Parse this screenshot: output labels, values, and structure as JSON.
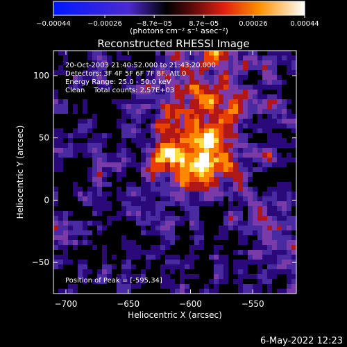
{
  "colorbar": {
    "tick_labels": [
      "−0.00044",
      "−0.00026",
      "−8.7e−05",
      "8.7e−05",
      "0.00026",
      "0.00044"
    ],
    "tick_values": [
      -0.00044,
      -0.00026,
      -8.7e-05,
      8.7e-05,
      0.00026,
      0.00044
    ],
    "range": [
      -0.00044,
      0.00044
    ],
    "units_label": "(photons cm⁻² s⁻¹ asec⁻²)"
  },
  "chart_data": {
    "type": "heatmap",
    "title": "Reconstructed RHESSI Image",
    "xlabel": "Heliocentric X (arcsec)",
    "ylabel": "Heliocentric Y (arcsec)",
    "xlim": [
      -710,
      -515
    ],
    "ylim": [
      -75,
      120
    ],
    "x_ticks": [
      -700,
      -650,
      -600,
      -550
    ],
    "x_tick_labels": [
      "−700",
      "−650",
      "−600",
      "−550"
    ],
    "y_ticks": [
      -50,
      0,
      50,
      100
    ],
    "y_tick_labels": [
      "−50",
      "0",
      "50",
      "100"
    ],
    "colormap": [
      "#000000",
      "#2a0a7a",
      "#4a2aa0",
      "#7a3aa8",
      "#b01818",
      "#e84000",
      "#ff8800",
      "#ffdd44",
      "#ffffff"
    ],
    "peak": [
      -595,
      34
    ],
    "annotations": [
      "20-Oct-2003 21:40:52.000 to 21:43:20.000",
      "Detectors: 3F 4F 5F 6F 7F 8F, Att 0",
      "Energy Range: 25.0 - 50.0 keV",
      "Clean    Total counts: 2.57E+03"
    ],
    "peak_label": "Position of Peak = [-595,34]"
  },
  "footer": {
    "timestamp": "6-May-2022 12:23"
  }
}
